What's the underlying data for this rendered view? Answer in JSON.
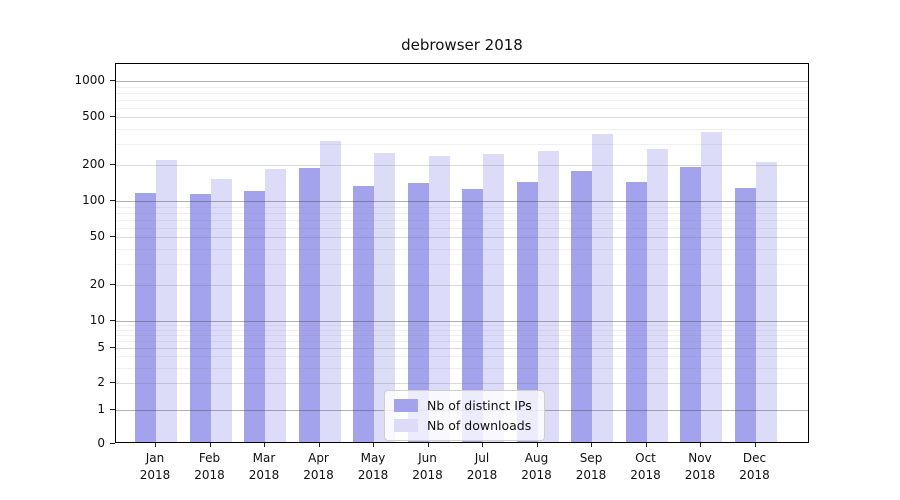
{
  "title": "debrowser 2018",
  "chart_data": {
    "type": "bar",
    "title": "debrowser 2018",
    "yscale": "symlog",
    "grid": true,
    "legend_position": "lower-center-inside",
    "ylim": [
      0,
      1200
    ],
    "yticks": [
      0,
      1,
      2,
      5,
      10,
      20,
      50,
      100,
      200,
      500,
      1000
    ],
    "categories": [
      "Jan 2018",
      "Feb 2018",
      "Mar 2018",
      "Apr 2018",
      "May 2018",
      "Jun 2018",
      "Jul 2018",
      "Aug 2018",
      "Sep 2018",
      "Oct 2018",
      "Nov 2018",
      "Dec 2018"
    ],
    "series": [
      {
        "name": "Nb of distinct IPs",
        "color": "#a2a2ed",
        "values": [
          112,
          110,
          116,
          181,
          128,
          135,
          121,
          138,
          172,
          139,
          184,
          124
        ]
      },
      {
        "name": "Nb of downloads",
        "color": "#dcdcf8",
        "values": [
          210,
          147,
          177,
          306,
          240,
          230,
          237,
          253,
          348,
          260,
          364,
          203
        ]
      }
    ]
  },
  "legend": {
    "items": [
      {
        "label": "Nb of distinct IPs",
        "color": "#a2a2ed"
      },
      {
        "label": "Nb of downloads",
        "color": "#dcdcf8"
      }
    ]
  }
}
